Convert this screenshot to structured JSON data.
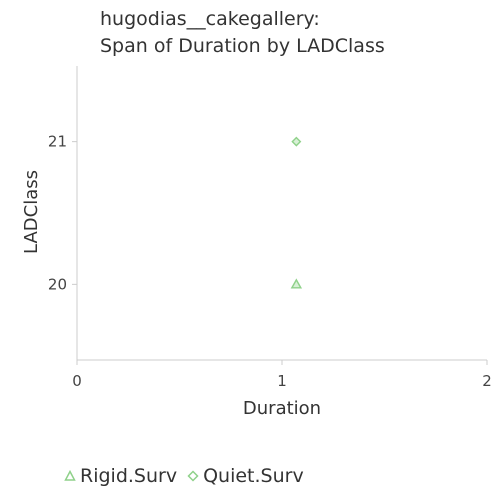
{
  "chart_data": {
    "type": "scatter",
    "title": "hugodias__cakegallery:",
    "subtitle": "Span of Duration by LADClass",
    "xlabel": "Duration",
    "ylabel": "LADClass",
    "xlim": [
      0,
      2
    ],
    "ylim": [
      19.47,
      21.53
    ],
    "x_ticks": [
      "0",
      "1",
      "2"
    ],
    "y_ticks": [
      "20",
      "21"
    ],
    "grid": false,
    "legend_position": "bottom-left",
    "series": [
      {
        "name": "Rigid.Surv",
        "marker": "triangle",
        "color": "#8fd18a",
        "points": [
          {
            "x": 1.07,
            "y": 20
          }
        ]
      },
      {
        "name": "Quiet.Surv",
        "marker": "diamond",
        "color": "#8fd18a",
        "points": [
          {
            "x": 1.07,
            "y": 21
          }
        ]
      }
    ]
  }
}
